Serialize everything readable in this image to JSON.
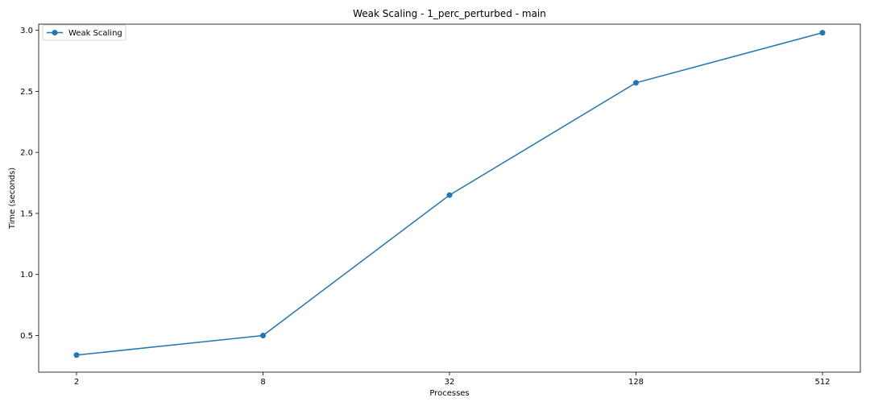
{
  "chart_data": {
    "type": "line",
    "title": "Weak Scaling - 1_perc_perturbed - main",
    "xlabel": "Processes",
    "ylabel": "Time (seconds)",
    "x_scale": "log2",
    "x": [
      2,
      8,
      32,
      128,
      512
    ],
    "x_tick_labels": [
      "2",
      "8",
      "32",
      "128",
      "512"
    ],
    "y_ticks": [
      0.5,
      1.0,
      1.5,
      2.0,
      2.5,
      3.0
    ],
    "y_tick_labels": [
      "0.5",
      "1.0",
      "1.5",
      "2.0",
      "2.5",
      "3.0"
    ],
    "ylim": [
      0.2,
      3.05
    ],
    "grid": false,
    "legend_position": "upper-left",
    "series": [
      {
        "name": "Weak Scaling",
        "color": "#1f77b4",
        "marker": "circle",
        "values": [
          0.34,
          0.5,
          1.65,
          2.57,
          2.98
        ]
      }
    ]
  }
}
